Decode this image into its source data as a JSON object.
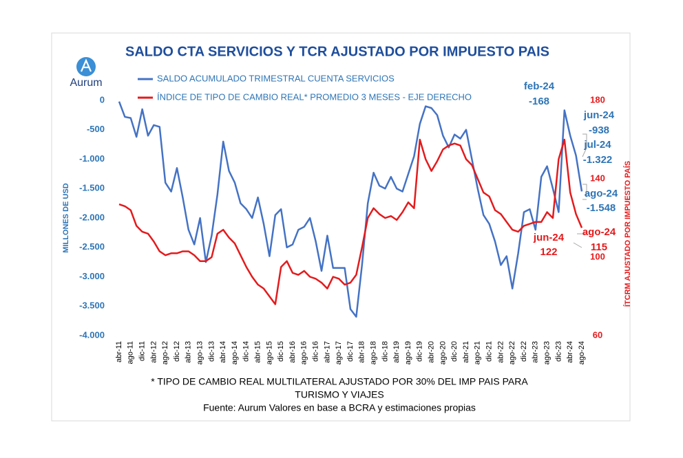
{
  "logo": "Aurum",
  "chart_data": {
    "type": "line",
    "title": "SALDO CTA SERVICIOS Y TCR AJUSTADO POR IMPUESTO PAIS",
    "y_label": "MILLONES DE USD",
    "y2_label": "ÍTCRM AJUSTADO POR IMPUESTO PAÍS",
    "categories": [
      "abr-11",
      null,
      "ago-11",
      null,
      "dic-11",
      null,
      "abr-12",
      null,
      "ago-12",
      null,
      "dic-12",
      null,
      "abr-13",
      null,
      "ago-13",
      null,
      "dic-13",
      null,
      "abr-14",
      null,
      "ago-14",
      null,
      "dic-14",
      null,
      "abr-15",
      null,
      "ago-15",
      null,
      "dic-15",
      null,
      "abr-16",
      null,
      "ago-16",
      null,
      "dic-16",
      null,
      "abr-17",
      null,
      "ago-17",
      null,
      "dic-17",
      null,
      "abr-18",
      null,
      "ago-18",
      null,
      "dic-18",
      null,
      "abr-19",
      null,
      "ago-19",
      null,
      "dic-19",
      null,
      "abr-20",
      null,
      "ago-20",
      null,
      "dic-20",
      null,
      "abr-21",
      null,
      "ago-21",
      null,
      "dic-21",
      null,
      "abr-22",
      null,
      "ago-22",
      null,
      "dic-22",
      null,
      "abr-23",
      null,
      "ago-23",
      null,
      "dic-23",
      null,
      "abr-24",
      null,
      "ago-24"
    ],
    "series": [
      {
        "name": "SALDO ACUMULADO TRIMESTRAL CUENTA SERVICIOS",
        "color": "#4472c4",
        "axis": "y",
        "values": [
          -20,
          -280,
          -300,
          -620,
          -150,
          -600,
          -420,
          -450,
          -1400,
          -1550,
          -1150,
          -1650,
          -2200,
          -2450,
          -2000,
          -2750,
          -2300,
          -1600,
          -700,
          -1200,
          -1400,
          -1750,
          -1850,
          -2000,
          -1650,
          -2100,
          -2650,
          -1950,
          -1850,
          -2500,
          -2450,
          -2200,
          -2150,
          -2000,
          -2400,
          -2900,
          -2300,
          -2850,
          -2850,
          -2850,
          -3550,
          -3680,
          -2800,
          -1750,
          -1230,
          -1450,
          -1500,
          -1300,
          -1500,
          -1550,
          -1250,
          -950,
          -400,
          -100,
          -130,
          -250,
          -600,
          -800,
          -580,
          -650,
          -500,
          -1000,
          -1500,
          -1950,
          -2100,
          -2400,
          -2800,
          -2650,
          -3200,
          -2600,
          -1900,
          -1850,
          -2200,
          -1300,
          -1120,
          -1500,
          -1900,
          -168,
          -600,
          -938,
          -1548
        ]
      },
      {
        "name": "ÍNDICE DE TIPO DE CAMBIO REAL* PROMEDIO 3 MESES - EJE DERECHO",
        "color": "#e41a1c",
        "axis": "y2",
        "values": [
          127,
          126,
          124,
          116,
          113,
          112,
          108,
          103,
          101,
          102,
          102,
          103,
          103,
          101,
          98,
          98,
          100,
          112,
          114,
          110,
          107,
          101,
          95,
          90,
          86,
          84,
          80,
          76,
          95,
          98,
          92,
          91,
          93,
          90,
          89,
          87,
          84,
          90,
          89,
          86,
          87,
          91,
          105,
          120,
          125,
          122,
          120,
          121,
          119,
          123,
          128,
          125,
          160,
          150,
          144,
          149,
          155,
          157,
          158,
          157,
          150,
          147,
          140,
          133,
          131,
          124,
          122,
          118,
          114,
          113,
          116,
          117,
          118,
          118,
          123,
          120,
          150,
          160,
          133,
          122,
          115
        ]
      }
    ],
    "ylim": [
      -4000,
      0
    ],
    "yticks": [
      {
        "value": -4000,
        "label": "-4.000"
      },
      {
        "value": -3500,
        "label": "-3.500"
      },
      {
        "value": -3000,
        "label": "-3.000"
      },
      {
        "value": -2500,
        "label": "-2.500"
      },
      {
        "value": -2000,
        "label": "-2.000"
      },
      {
        "value": -1500,
        "label": "-1.500"
      },
      {
        "value": -1000,
        "label": "-1.000"
      },
      -500,
      0
    ],
    "y2lim": [
      60,
      180
    ],
    "y2ticks": [
      60,
      100,
      140,
      180
    ],
    "grid": false,
    "annotations": [
      {
        "label": "feb-24",
        "value": "-168",
        "color": "#2e75b6"
      },
      {
        "label": "jun-24",
        "value": "-938",
        "color": "#2e75b6"
      },
      {
        "label": "jul-24",
        "value": "-1.322",
        "color": "#2e75b6"
      },
      {
        "label": "ago-24",
        "value": "-1.548",
        "color": "#2e75b6"
      },
      {
        "label": "ago-24",
        "value": "115",
        "color": "#e41a1c"
      },
      {
        "label": "jun-24",
        "value": "122",
        "color": "#e41a1c"
      }
    ],
    "footnotes": [
      "* TIPO DE CAMBIO REAL MULTILATERAL AJUSTADO POR 30% DEL IMP PAIS PARA",
      "TURISMO Y VIAJES",
      "Fuente: Aurum Valores en base a BCRA y estimaciones propias"
    ]
  }
}
